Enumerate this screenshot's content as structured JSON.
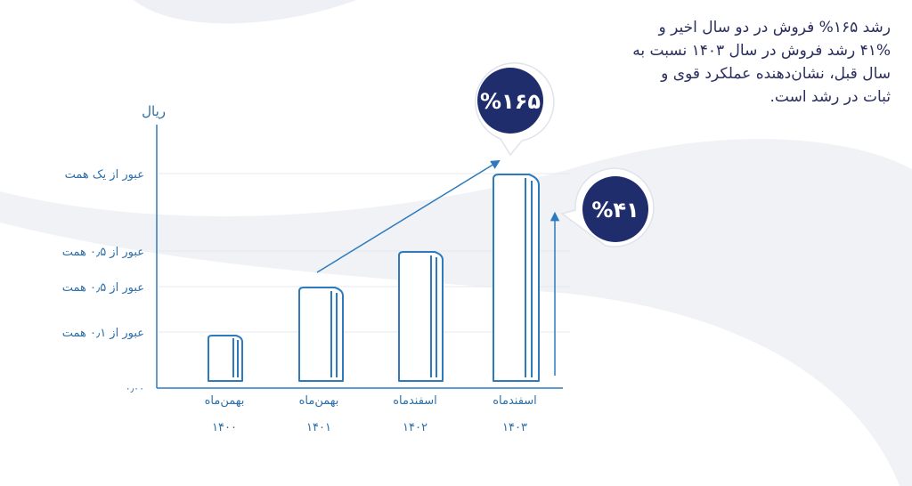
{
  "description": {
    "lines": [
      "رشد ۱۶۵% فروش در دو سال اخیر و",
      "۴۱% رشد فروش در سال ۱۴۰۳ نسبت به",
      "سال قبل، نشان‌دهنده عملکرد قوی و",
      "ثبات در رشد است."
    ]
  },
  "y_axis": {
    "unit": "ریال",
    "labels": [
      "عبور از یک همت",
      "عبور از ۰٫۵ همت",
      "عبور از ۰٫۵ همت",
      "عبور از ۰٫۱ همت",
      "۰٫۰۰"
    ]
  },
  "bars": [
    {
      "month": "بهمن‌ماه",
      "year": "۱۴۰۰"
    },
    {
      "month": "بهمن‌ماه",
      "year": "۱۴۰۱"
    },
    {
      "month": "اسفندماه",
      "year": "۱۴۰۲"
    },
    {
      "month": "اسفندماه",
      "year": "۱۴۰۳"
    }
  ],
  "callouts": [
    "%۱۶۵",
    "%۴۱"
  ]
}
